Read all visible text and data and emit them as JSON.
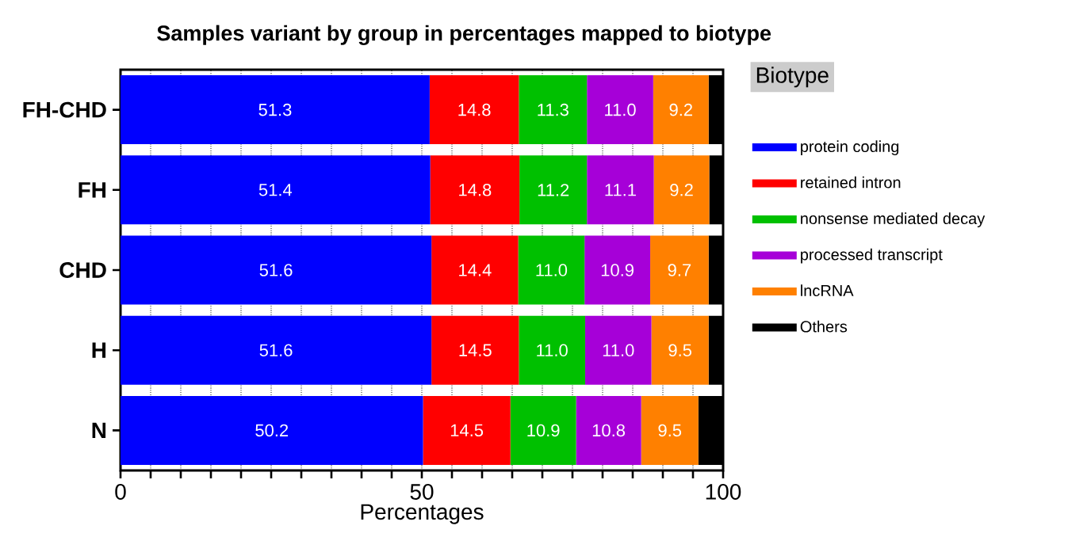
{
  "chart_data": {
    "type": "bar",
    "orientation": "horizontal",
    "stacked": true,
    "title": "Samples variant by group in percentages mapped to biotype",
    "xlabel": "Percentages",
    "legend_title": "Biotype",
    "legend": "right",
    "grid": "x",
    "categories": [
      "FH-CHD",
      "FH",
      "CHD",
      "H",
      "N"
    ],
    "xlim": [
      0,
      100
    ],
    "xticks": [
      0,
      {
        "value": 5,
        "label": null
      },
      {
        "value": 10,
        "label": null
      },
      {
        "value": 15,
        "label": null
      },
      {
        "value": 20,
        "label": null
      },
      {
        "value": 25,
        "label": null
      },
      {
        "value": 30,
        "label": null
      },
      {
        "value": 35,
        "label": null
      },
      {
        "value": 40,
        "label": null
      },
      {
        "value": 45,
        "label": null
      },
      50,
      {
        "value": 55,
        "label": null
      },
      {
        "value": 60,
        "label": null
      },
      {
        "value": 65,
        "label": null
      },
      {
        "value": 70,
        "label": null
      },
      {
        "value": 75,
        "label": null
      },
      {
        "value": 80,
        "label": null
      },
      {
        "value": 85,
        "label": null
      },
      {
        "value": 90,
        "label": null
      },
      {
        "value": 95,
        "label": null
      },
      100
    ],
    "series": [
      {
        "name": "protein coding",
        "color": "#0000ff",
        "values": [
          51.3,
          51.4,
          51.6,
          51.6,
          50.2
        ],
        "value_labels": [
          "51.3",
          "51.4",
          "51.6",
          "51.6",
          "50.2"
        ]
      },
      {
        "name": "retained intron",
        "color": "#ff0000",
        "values": [
          14.8,
          14.8,
          14.4,
          14.5,
          14.5
        ],
        "value_labels": [
          "14.8",
          "14.8",
          "14.4",
          "14.5",
          "14.5"
        ]
      },
      {
        "name": "nonsense mediated decay",
        "color": "#00c000",
        "values": [
          11.3,
          11.2,
          11.0,
          11.0,
          10.9
        ],
        "value_labels": [
          "11.3",
          "11.2",
          "11.0",
          "11.0",
          "10.9"
        ]
      },
      {
        "name": "processed transcript",
        "color": "#a600d8",
        "values": [
          11.0,
          11.1,
          10.9,
          11.0,
          10.8
        ],
        "value_labels": [
          "11.0",
          "11.1",
          "10.9",
          "11.0",
          "10.8"
        ]
      },
      {
        "name": "lncRNA",
        "color": "#ff8000",
        "values": [
          9.2,
          9.2,
          9.7,
          9.5,
          9.5
        ],
        "value_labels": [
          "9.2",
          "9.2",
          "9.7",
          "9.5",
          "9.5"
        ]
      },
      {
        "name": "Others",
        "color": "#000000",
        "values": [
          2.4,
          2.3,
          2.4,
          2.4,
          4.1
        ]
      }
    ]
  }
}
